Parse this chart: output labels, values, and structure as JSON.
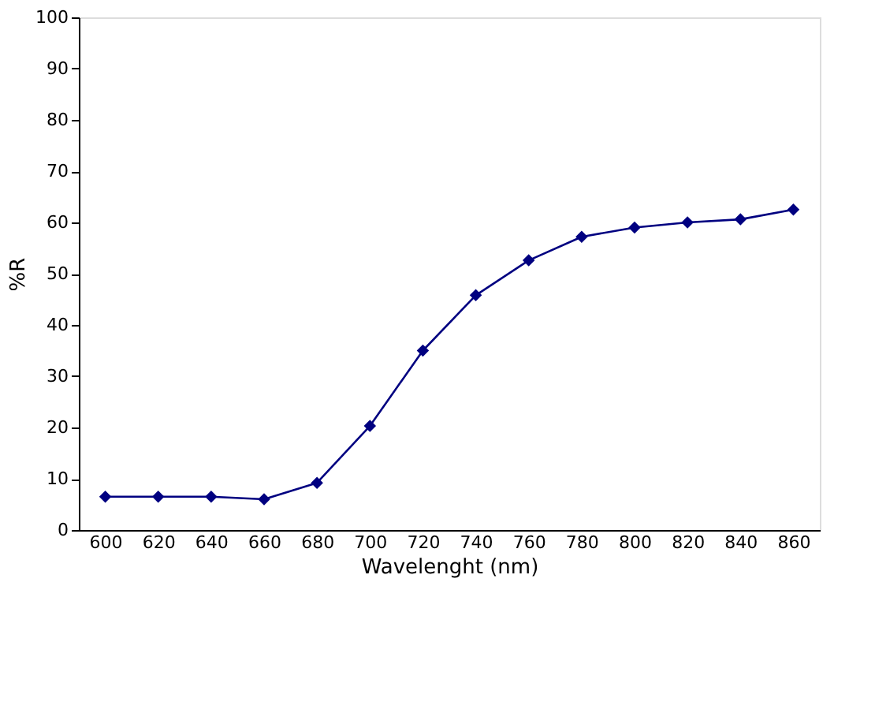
{
  "chart_data": {
    "type": "line",
    "xlabel": "Wavelenght (nm)",
    "ylabel": "%R",
    "categories": [
      "600",
      "620",
      "640",
      "660",
      "680",
      "700",
      "720",
      "740",
      "760",
      "780",
      "800",
      "820",
      "840",
      "860"
    ],
    "series": [
      {
        "color": "#000080",
        "values": [
          6.5,
          6.5,
          6.5,
          6,
          9.2,
          20.3,
          35,
          45.8,
          52.6,
          57.2,
          59,
          60,
          60.6,
          62.5
        ]
      }
    ],
    "ylim": [
      0,
      100
    ],
    "yticks": [
      0,
      10,
      20,
      30,
      40,
      50,
      60,
      70,
      80,
      90,
      100
    ],
    "marker": "diamond",
    "line_style": "solid",
    "grid": false
  }
}
